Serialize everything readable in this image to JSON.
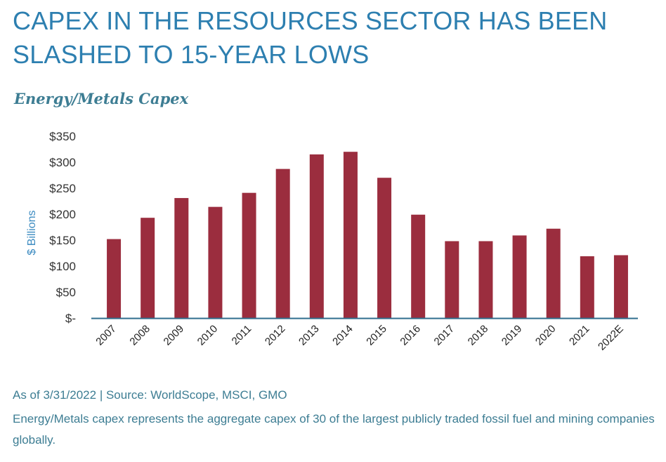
{
  "header": {
    "headline_line1": "CAPEX IN THE RESOURCES SECTOR HAS BEEN",
    "headline_line2": "SLASHED TO 15-YEAR LOWS"
  },
  "footer": {
    "source": "As of 3/31/2022 | Source: WorldScope, MSCI, GMO",
    "description": "Energy/Metals capex represents the aggregate capex of 30 of the largest publicly traded fossil fuel and mining companies globally."
  },
  "colors": {
    "headline": "#2d7fb0",
    "bar": "#9b2d3e",
    "axis": "#2f6e8e",
    "text_accent": "#3d7d93"
  },
  "chart_data": {
    "type": "bar",
    "title": "Energy/Metals Capex",
    "ylabel": "$ Billions",
    "xlabel": "",
    "ylim": [
      0,
      350
    ],
    "yticks": [
      {
        "value": 350,
        "label": "$350"
      },
      {
        "value": 300,
        "label": "$300"
      },
      {
        "value": 250,
        "label": "$250"
      },
      {
        "value": 200,
        "label": "$200"
      },
      {
        "value": 150,
        "label": "$150"
      },
      {
        "value": 100,
        "label": "$100"
      },
      {
        "value": 50,
        "label": "$50"
      },
      {
        "value": 0,
        "label": "$-"
      }
    ],
    "grid": false,
    "categories": [
      "2007",
      "2008",
      "2009",
      "2010",
      "2011",
      "2012",
      "2013",
      "2014",
      "2015",
      "2016",
      "2017",
      "2018",
      "2019",
      "2020",
      "2021",
      "2022E"
    ],
    "values": [
      152,
      193,
      231,
      214,
      241,
      287,
      315,
      320,
      270,
      199,
      148,
      148,
      159,
      172,
      119,
      121
    ]
  }
}
